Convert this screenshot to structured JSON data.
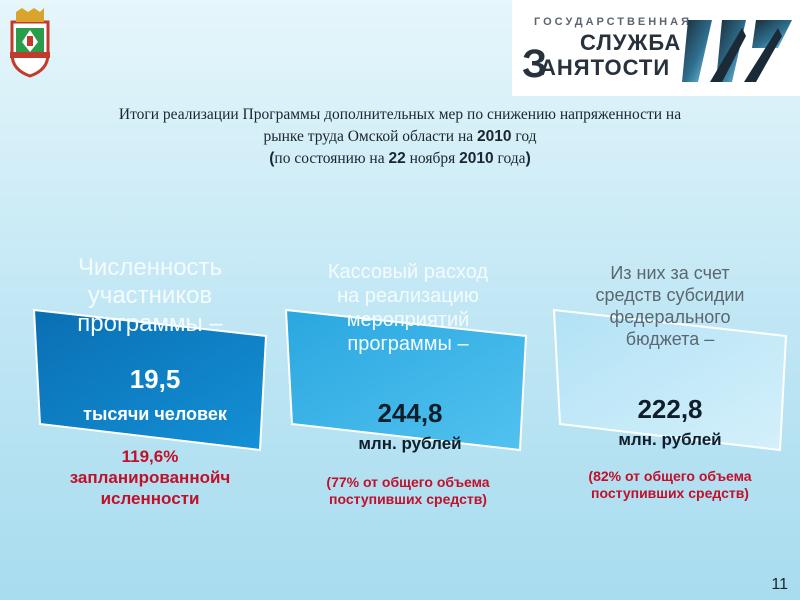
{
  "header": {
    "logo_line1": "ГОСУДАРСТВЕННАЯ",
    "logo_line2": "СЛУЖБА",
    "logo_line3": "АНЯТОСТИ",
    "logo_initial": "З",
    "coat_of_arms_icon": "omsk-coat-of-arms-icon",
    "logo_mark_icon": "employment-service-logo-icon"
  },
  "title": {
    "line1": "Итоги реализации Программы дополнительных мер по снижению напряженности на",
    "line2_a": "рынке труда Омской области на ",
    "line2_year": "2010",
    "line2_b": " год",
    "line3_open": "(",
    "line3_a": "по состоянию на ",
    "line3_day": "22",
    "line3_b": " ноября ",
    "line3_year": "2010",
    "line3_c": " года",
    "line3_close": ")"
  },
  "cards": [
    {
      "heading_1": "Численность",
      "heading_2": "участников",
      "heading_3": "программы –",
      "value": "19,5",
      "unit": "тысячи человек",
      "note_1": "119,6%",
      "note_2": "запланированнойч",
      "note_3": "исленности"
    },
    {
      "heading_1": "Кассовый расход",
      "heading_2": "на реализацию",
      "heading_3": "мероприятий",
      "heading_4": "программы –",
      "value": "244,8",
      "unit": "млн. рублей",
      "note_1": "(77% от общего объема",
      "note_2": "поступивших средств)"
    },
    {
      "heading_1": "Из них за счет",
      "heading_2": "средств субсидии",
      "heading_3": "федерального",
      "heading_4": "бюджета –",
      "value": "222,8",
      "unit": "млн. рублей",
      "note_1": "(82% от общего объема",
      "note_2": "поступивших средств)"
    }
  ],
  "page_number": "11",
  "colors": {
    "card1": "#0f7fc4",
    "card2": "#39b3e8",
    "card3": "#bfe8f7",
    "note_red": "#c0102b"
  }
}
